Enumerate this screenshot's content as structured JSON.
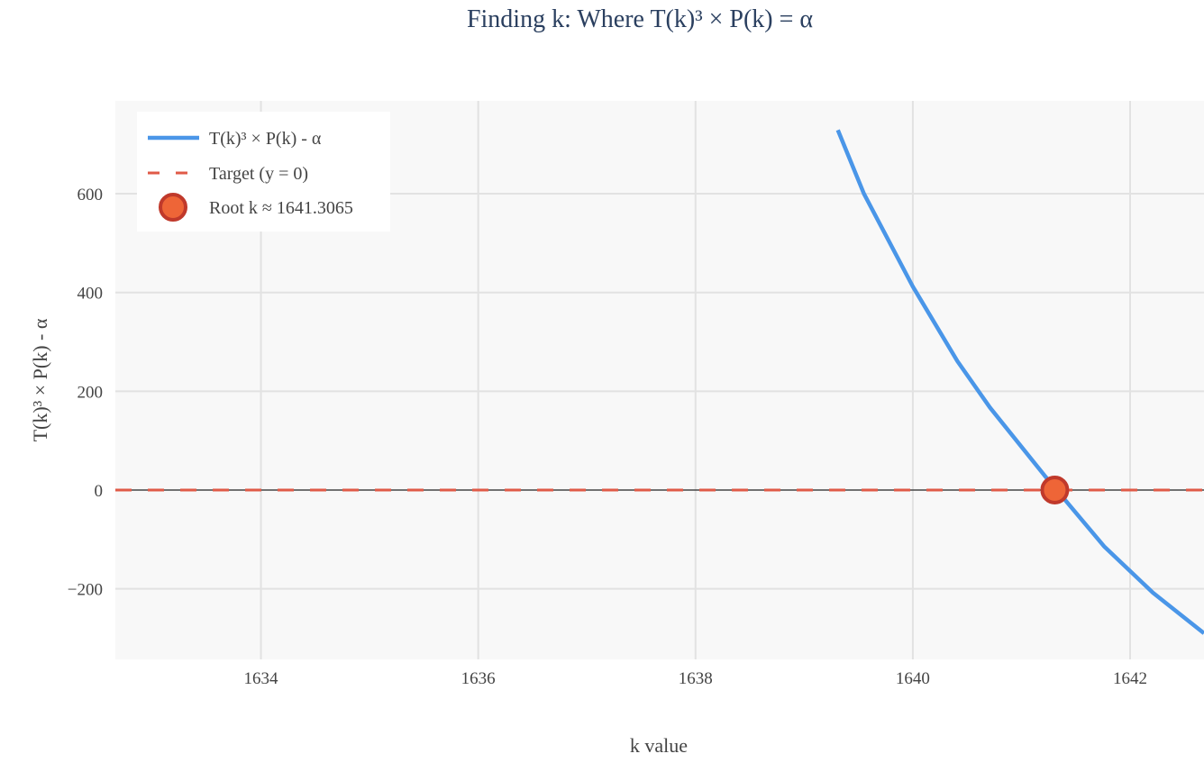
{
  "chart_data": {
    "type": "line",
    "title": "Finding k: Where T(k)³ × P(k) = α",
    "xlabel": "k value",
    "ylabel": "T(k)³ × P(k) - α",
    "xlim": [
      1632.66,
      1642.68
    ],
    "ylim": [
      -343,
      788
    ],
    "xticks": [
      1634,
      1636,
      1638,
      1640,
      1642
    ],
    "xtick_labels": [
      "1634",
      "1636",
      "1638",
      "1640",
      "1642"
    ],
    "yticks": [
      -200,
      0,
      200,
      400,
      600
    ],
    "ytick_labels": [
      "−200",
      "0",
      "200",
      "400",
      "600"
    ],
    "grid": true,
    "legend_position": "top-left",
    "series": [
      {
        "name": "T(k)³ × P(k) - α",
        "color": "#4a96e8",
        "style": "solid",
        "x": [
          1639.31,
          1639.55,
          1640.0,
          1640.41,
          1640.71,
          1641.21,
          1641.76,
          1642.21,
          1642.68
        ],
        "y": [
          729,
          600,
          412,
          261,
          167,
          30,
          -114,
          -208,
          -290
        ]
      },
      {
        "name": "Target (y = 0)",
        "color": "#e05a47",
        "style": "dashed",
        "y_constant": 0
      },
      {
        "name": "Root k ≈ 1641.3065",
        "color": "#ee6537",
        "edge_color": "#c0392b",
        "style": "marker",
        "x": [
          1641.3065
        ],
        "y": [
          0
        ]
      }
    ]
  }
}
